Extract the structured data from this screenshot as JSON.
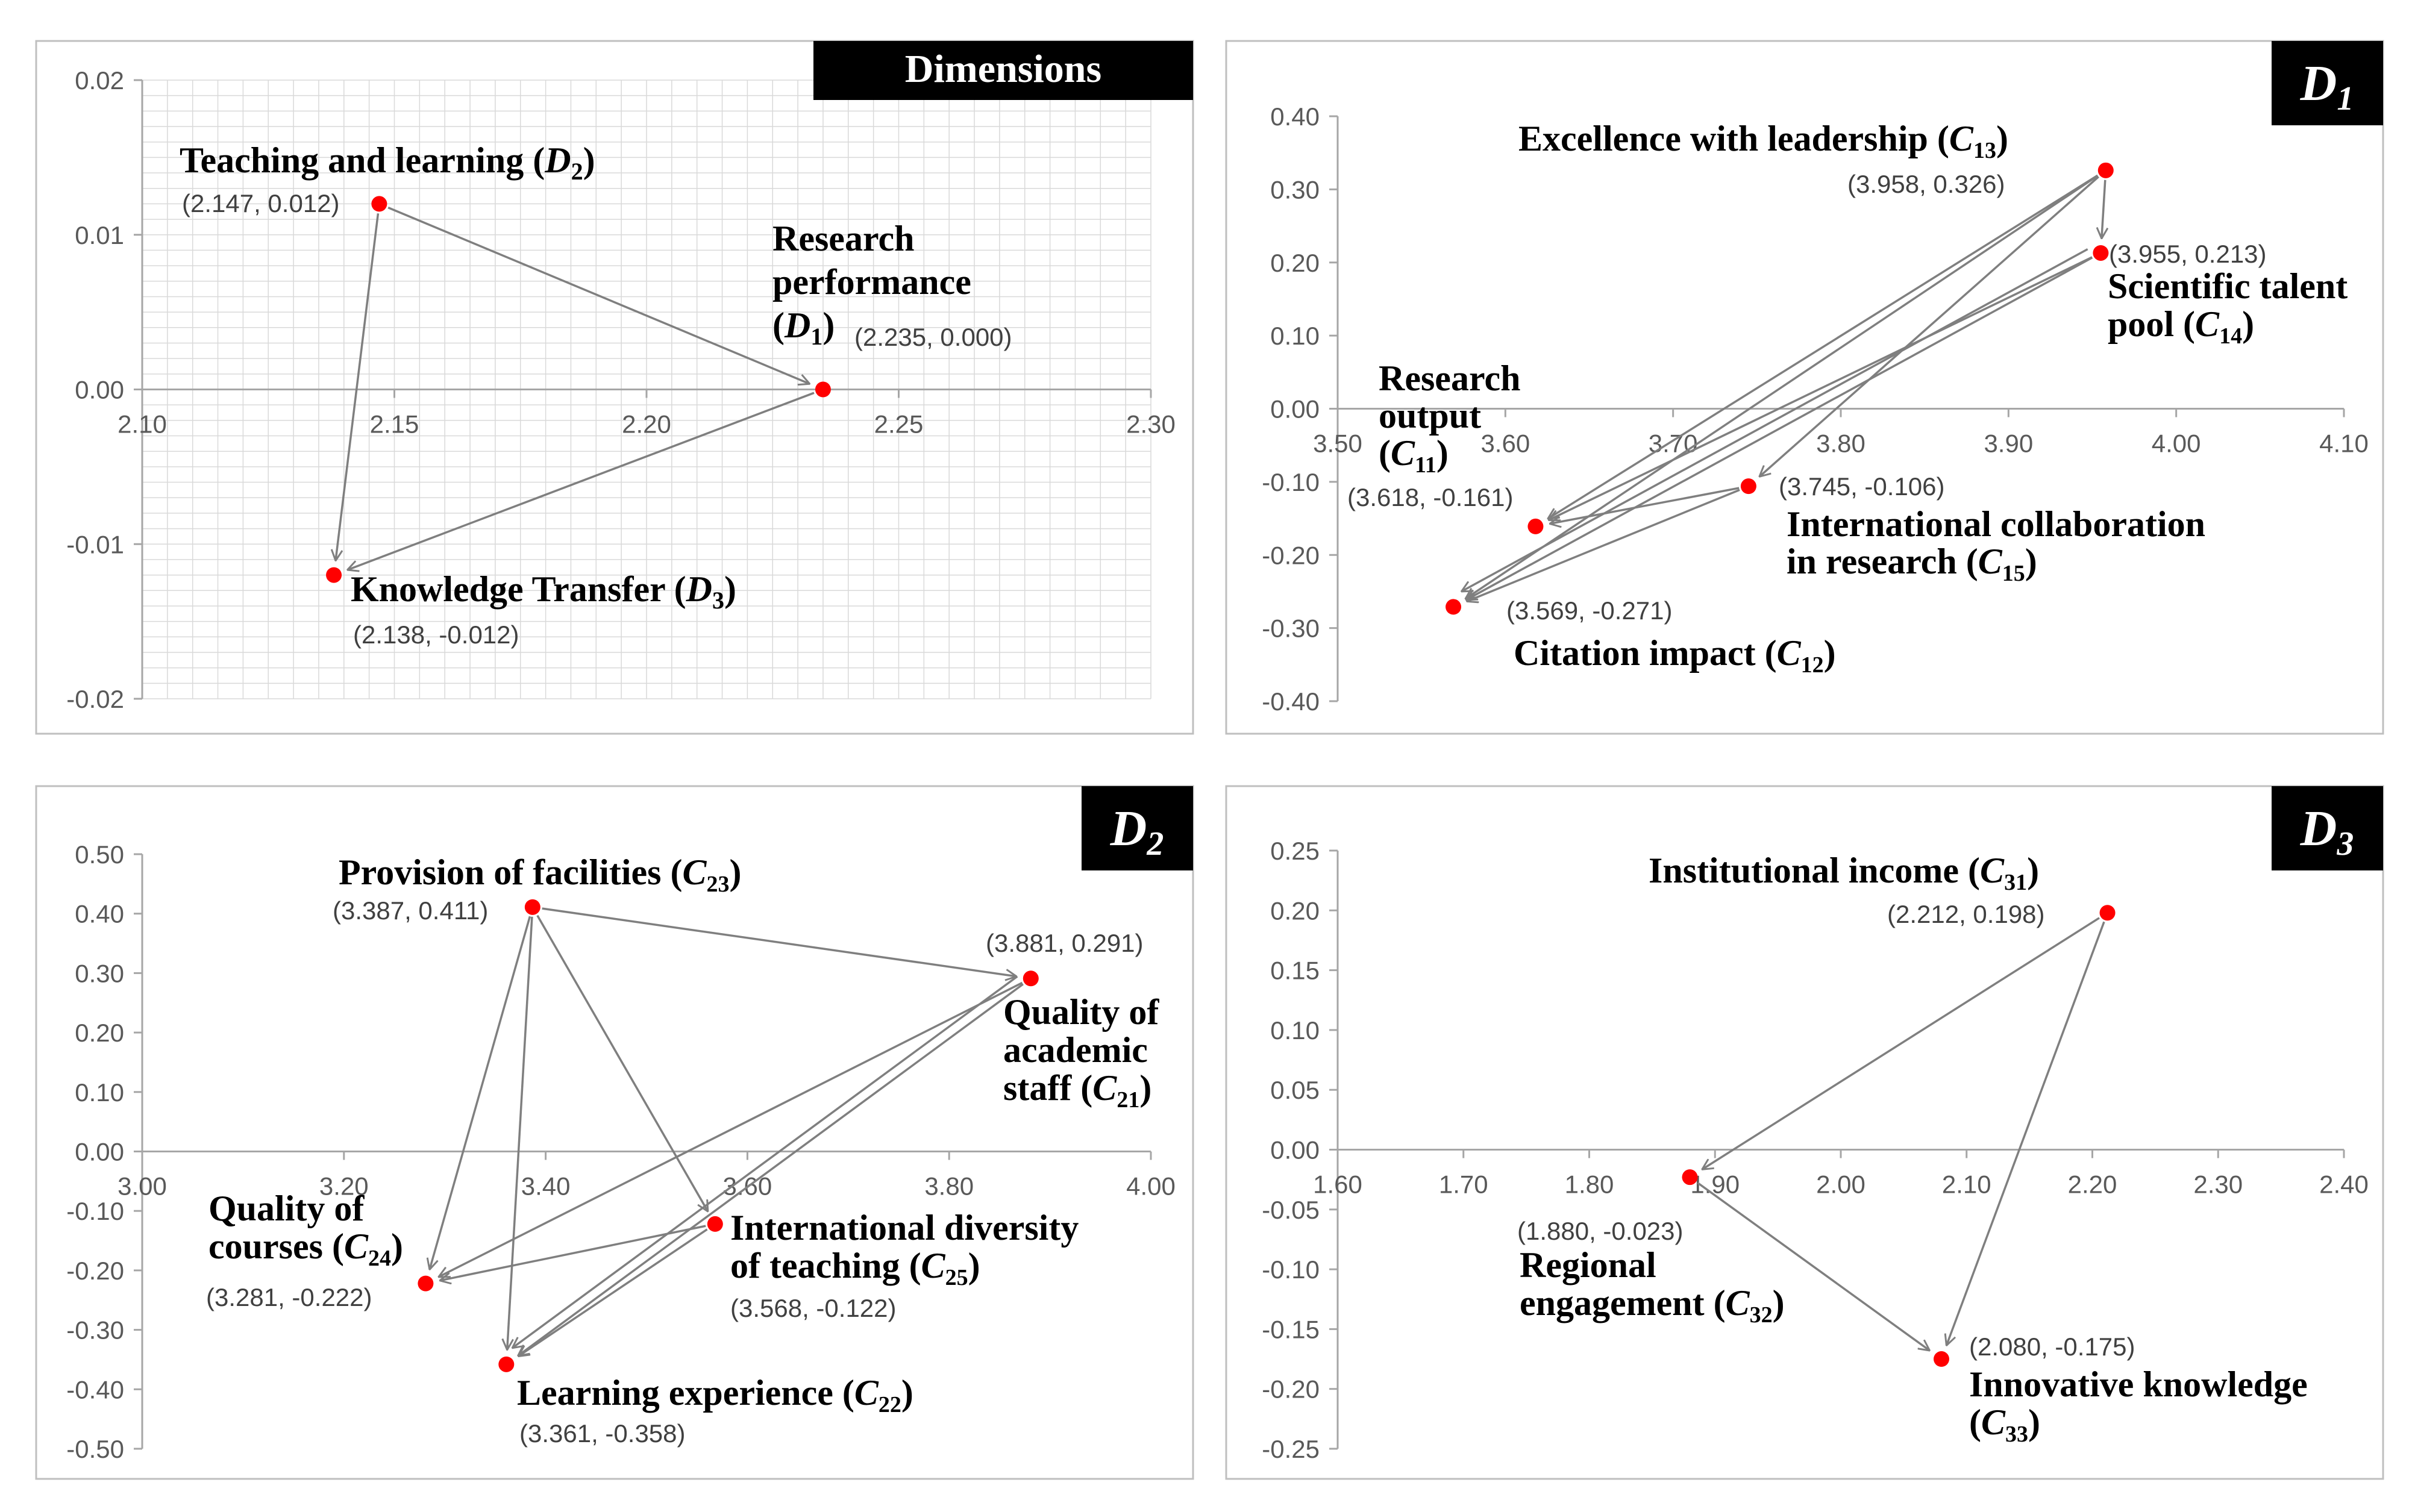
{
  "chart_data": [
    {
      "type": "scatter",
      "tag": "Dimensions",
      "xlim": [
        2.1,
        2.3
      ],
      "ylim": [
        -0.02,
        0.02
      ],
      "xticks": [
        "2.10",
        "2.15",
        "2.20",
        "2.25",
        "2.30"
      ],
      "yticks": [
        "0.02",
        "0.01",
        "0.00",
        "-0.01",
        "-0.02"
      ],
      "grid": true,
      "points": [
        {
          "id": "D2",
          "name": "Teaching and learning",
          "sym": "D",
          "sub": "2",
          "x": 2.147,
          "y": 0.012,
          "coord": "(2.147, 0.012)"
        },
        {
          "id": "D1",
          "name": "Research performance",
          "sym": "D",
          "sub": "1",
          "x": 2.235,
          "y": 0.0,
          "coord": "(2.235, 0.000)"
        },
        {
          "id": "D3",
          "name": "Knowledge Transfer",
          "sym": "D",
          "sub": "3",
          "x": 2.138,
          "y": -0.012,
          "coord": "(2.138, -0.012)"
        }
      ],
      "arrows": [
        [
          "D2",
          "D1"
        ],
        [
          "D2",
          "D3"
        ],
        [
          "D1",
          "D3"
        ]
      ]
    },
    {
      "type": "scatter",
      "tag": "D1",
      "xlim": [
        3.5,
        4.1
      ],
      "ylim": [
        -0.4,
        0.4
      ],
      "xticks": [
        "3.50",
        "3.60",
        "3.70",
        "3.80",
        "3.90",
        "4.00",
        "4.10"
      ],
      "yticks": [
        "0.40",
        "0.30",
        "0.20",
        "0.10",
        "0.00",
        "-0.10",
        "-0.20",
        "-0.30",
        "-0.40"
      ],
      "grid": false,
      "points": [
        {
          "id": "C13",
          "name": "Excellence with leadership",
          "sym": "C",
          "sub": "13",
          "x": 3.958,
          "y": 0.326,
          "coord": "(3.958, 0.326)"
        },
        {
          "id": "C14",
          "name": "Scientific talent pool",
          "sym": "C",
          "sub": "14",
          "x": 3.955,
          "y": 0.213,
          "coord": "(3.955, 0.213)"
        },
        {
          "id": "C11",
          "name": "Research output",
          "sym": "C",
          "sub": "11",
          "x": 3.618,
          "y": -0.161,
          "coord": "(3.618, -0.161)"
        },
        {
          "id": "C15",
          "name": "International collaboration in research",
          "sym": "C",
          "sub": "15",
          "x": 3.745,
          "y": -0.106,
          "coord": "(3.745, -0.106)"
        },
        {
          "id": "C12",
          "name": "Citation impact",
          "sym": "C",
          "sub": "12",
          "x": 3.569,
          "y": -0.271,
          "coord": "(3.569, -0.271)"
        }
      ],
      "arrows": [
        [
          "C13",
          "C14"
        ],
        [
          "C13",
          "C11"
        ],
        [
          "C13",
          "C12"
        ],
        [
          "C13",
          "C15"
        ],
        [
          "C14",
          "C11"
        ],
        [
          "C14",
          "C12"
        ],
        [
          "C14",
          "C12"
        ],
        [
          "C15",
          "C11"
        ],
        [
          "C15",
          "C12"
        ]
      ]
    },
    {
      "type": "scatter",
      "tag": "D2",
      "xlim": [
        3.0,
        4.0
      ],
      "ylim": [
        -0.5,
        0.5
      ],
      "xticks": [
        "3.00",
        "3.20",
        "3.40",
        "3.60",
        "3.80",
        "4.00"
      ],
      "yticks": [
        "0.50",
        "0.40",
        "0.30",
        "0.20",
        "0.10",
        "0.00",
        "-0.10",
        "-0.20",
        "-0.30",
        "-0.40",
        "-0.50"
      ],
      "grid": false,
      "points": [
        {
          "id": "C23",
          "name": "Provision of facilities",
          "sym": "C",
          "sub": "23",
          "x": 3.387,
          "y": 0.411,
          "coord": "(3.387, 0.411)"
        },
        {
          "id": "C21",
          "name": "Quality of academic staff",
          "sym": "C",
          "sub": "21",
          "x": 3.881,
          "y": 0.291,
          "coord": "(3.881, 0.291)"
        },
        {
          "id": "C24",
          "name": "Quality of courses",
          "sym": "C",
          "sub": "24",
          "x": 3.281,
          "y": -0.222,
          "coord": "(3.281, -0.222)"
        },
        {
          "id": "C25",
          "name": "International diversity of teaching",
          "sym": "C",
          "sub": "25",
          "x": 3.568,
          "y": -0.122,
          "coord": "(3.568, -0.122)"
        },
        {
          "id": "C22",
          "name": "Learning experience",
          "sym": "C",
          "sub": "22",
          "x": 3.361,
          "y": -0.358,
          "coord": "(3.361, -0.358)"
        }
      ],
      "arrows": [
        [
          "C23",
          "C21"
        ],
        [
          "C23",
          "C24"
        ],
        [
          "C23",
          "C22"
        ],
        [
          "C23",
          "C25"
        ],
        [
          "C21",
          "C24"
        ],
        [
          "C21",
          "C22"
        ],
        [
          "C21",
          "C22"
        ],
        [
          "C25",
          "C24"
        ],
        [
          "C25",
          "C22"
        ]
      ]
    },
    {
      "type": "scatter",
      "tag": "D3",
      "xlim": [
        1.6,
        2.4
      ],
      "ylim": [
        -0.25,
        0.25
      ],
      "xticks": [
        "1.60",
        "1.70",
        "1.80",
        "1.90",
        "2.00",
        "2.10",
        "2.20",
        "2.30",
        "2.40"
      ],
      "yticks": [
        "0.25",
        "0.20",
        "0.15",
        "0.10",
        "0.05",
        "0.00",
        "-0.05",
        "-0.10",
        "-0.15",
        "-0.20",
        "-0.25"
      ],
      "grid": false,
      "points": [
        {
          "id": "C31",
          "name": "Institutional income",
          "sym": "C",
          "sub": "31",
          "x": 2.212,
          "y": 0.198,
          "coord": "(2.212, 0.198)"
        },
        {
          "id": "C32",
          "name": "Regional engagement",
          "sym": "C",
          "sub": "32",
          "x": 1.88,
          "y": -0.023,
          "coord": "(1.880, -0.023)"
        },
        {
          "id": "C33",
          "name": "Innovative knowledge",
          "sym": "C",
          "sub": "33",
          "x": 2.08,
          "y": -0.175,
          "coord": "(2.080, -0.175)"
        }
      ],
      "arrows": [
        [
          "C31",
          "C32"
        ],
        [
          "C31",
          "C33"
        ],
        [
          "C32",
          "C33"
        ]
      ]
    }
  ],
  "colors": {
    "point": "#ff0000",
    "arrow": "#7f7f7f",
    "axis": "#a6a6a6",
    "grid": "#d9d9d9",
    "tag_bg": "#000000",
    "tag_fg": "#ffffff"
  }
}
